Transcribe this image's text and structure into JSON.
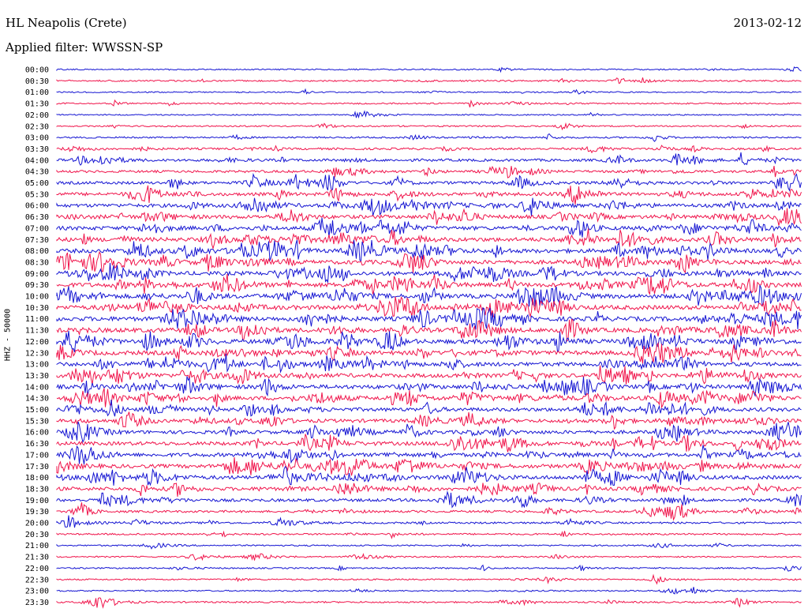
{
  "header": {
    "station": "HL Neapolis (Crete)",
    "date": "2013-02-12",
    "filter": "Applied filter: WWSSN-SP"
  },
  "chart_data": {
    "type": "line",
    "title": "HL Neapolis (Crete)",
    "subtitle": "Applied filter: WWSSN-SP",
    "ylabel": "HHZ - 50000",
    "xlabel": "",
    "row_labels": [
      "00:00",
      "00:30",
      "01:00",
      "01:30",
      "02:00",
      "02:30",
      "03:00",
      "03:30",
      "04:00",
      "04:30",
      "05:00",
      "05:30",
      "06:00",
      "06:30",
      "07:00",
      "07:30",
      "08:00",
      "08:30",
      "09:00",
      "09:30",
      "10:00",
      "10:30",
      "11:00",
      "11:30",
      "12:00",
      "12:30",
      "13:00",
      "13:30",
      "14:00",
      "14:30",
      "15:00",
      "15:30",
      "16:00",
      "16:30",
      "17:00",
      "17:30",
      "18:00",
      "18:30",
      "19:00",
      "19:30",
      "20:00",
      "20:30",
      "21:00",
      "21:30",
      "22:00",
      "22:30",
      "23:00",
      "23:30"
    ],
    "series_colors": [
      "#1414d2",
      "#f0144b"
    ],
    "activity_level": [
      0.08,
      0.15,
      0.08,
      0.12,
      0.06,
      0.12,
      0.18,
      0.3,
      0.45,
      0.4,
      0.55,
      0.65,
      0.7,
      0.75,
      0.8,
      0.85,
      0.85,
      0.85,
      0.85,
      0.9,
      0.95,
      0.95,
      0.95,
      0.95,
      0.95,
      0.9,
      0.85,
      0.85,
      0.85,
      0.8,
      0.75,
      0.7,
      0.7,
      0.75,
      0.75,
      0.8,
      0.8,
      0.7,
      0.55,
      0.35,
      0.25,
      0.2,
      0.12,
      0.1,
      0.12,
      0.12,
      0.1,
      0.18
    ],
    "grid": false
  }
}
